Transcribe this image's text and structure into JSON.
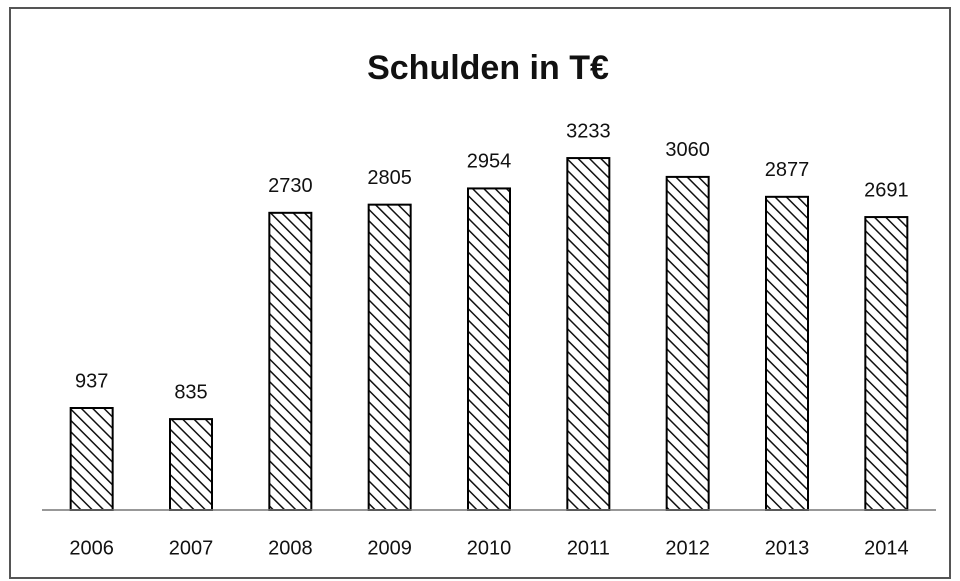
{
  "chart_data": {
    "type": "bar",
    "title": "Schulden in T€",
    "categories": [
      "2006",
      "2007",
      "2008",
      "2009",
      "2010",
      "2011",
      "2012",
      "2013",
      "2014"
    ],
    "values": [
      937,
      835,
      2730,
      2805,
      2954,
      3233,
      3060,
      2877,
      2691
    ],
    "color": "#000000",
    "ylim": [
      0,
      3500
    ]
  }
}
